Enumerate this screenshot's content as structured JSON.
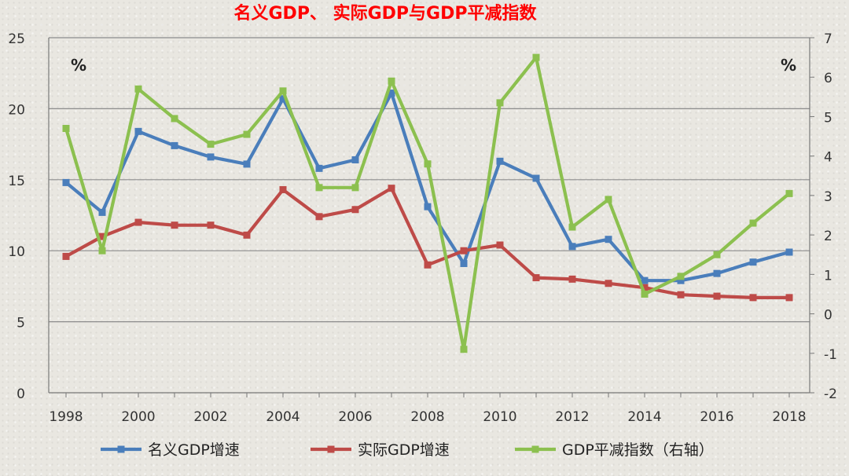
{
  "chart_data": {
    "type": "line",
    "title": "名义GDP、 实际GDP与GDP平减指数",
    "left_unit": "%",
    "right_unit": "%",
    "x": [
      1998,
      1999,
      2000,
      2001,
      2002,
      2003,
      2004,
      2005,
      2006,
      2007,
      2008,
      2009,
      2010,
      2011,
      2012,
      2013,
      2014,
      2015,
      2016,
      2017,
      2018
    ],
    "x_tick_labels": [
      "1998",
      "2000",
      "2002",
      "2004",
      "2006",
      "2008",
      "2010",
      "2012",
      "2014",
      "2016",
      "2018"
    ],
    "y_left": {
      "range": [
        0,
        25
      ],
      "ticks": [
        "0",
        "5",
        "10",
        "15",
        "20",
        "25"
      ]
    },
    "y_right": {
      "range": [
        -2,
        7
      ],
      "ticks": [
        "-2",
        "-1",
        "0",
        "1",
        "2",
        "3",
        "4",
        "5",
        "6",
        "7"
      ]
    },
    "grid": "horizontal",
    "legend_position": "bottom",
    "series": [
      {
        "name": "名义GDP增速",
        "axis": "left",
        "color": "#4a7ebb",
        "values": [
          14.8,
          12.7,
          18.4,
          17.4,
          16.6,
          16.1,
          20.7,
          15.8,
          16.4,
          21.1,
          13.1,
          9.1,
          16.3,
          15.1,
          10.3,
          10.8,
          7.9,
          7.9,
          8.4,
          9.2,
          9.9
        ]
      },
      {
        "name": "实际GDP增速",
        "axis": "left",
        "color": "#be4b48",
        "values": [
          9.6,
          11.0,
          12.0,
          11.8,
          11.8,
          11.1,
          14.3,
          12.4,
          12.9,
          14.4,
          9.0,
          10.0,
          10.4,
          8.1,
          8.0,
          7.7,
          7.4,
          6.9,
          6.8,
          6.7,
          6.7
        ]
      },
      {
        "name": "GDP平减指数（右轴）",
        "axis": "right",
        "color": "#8cc04f",
        "values": [
          4.7,
          1.6,
          5.7,
          4.95,
          4.3,
          4.55,
          5.65,
          3.2,
          3.2,
          5.9,
          3.8,
          -0.9,
          5.35,
          6.5,
          2.2,
          2.9,
          0.5,
          0.95,
          1.5,
          2.3,
          3.05
        ]
      }
    ]
  }
}
